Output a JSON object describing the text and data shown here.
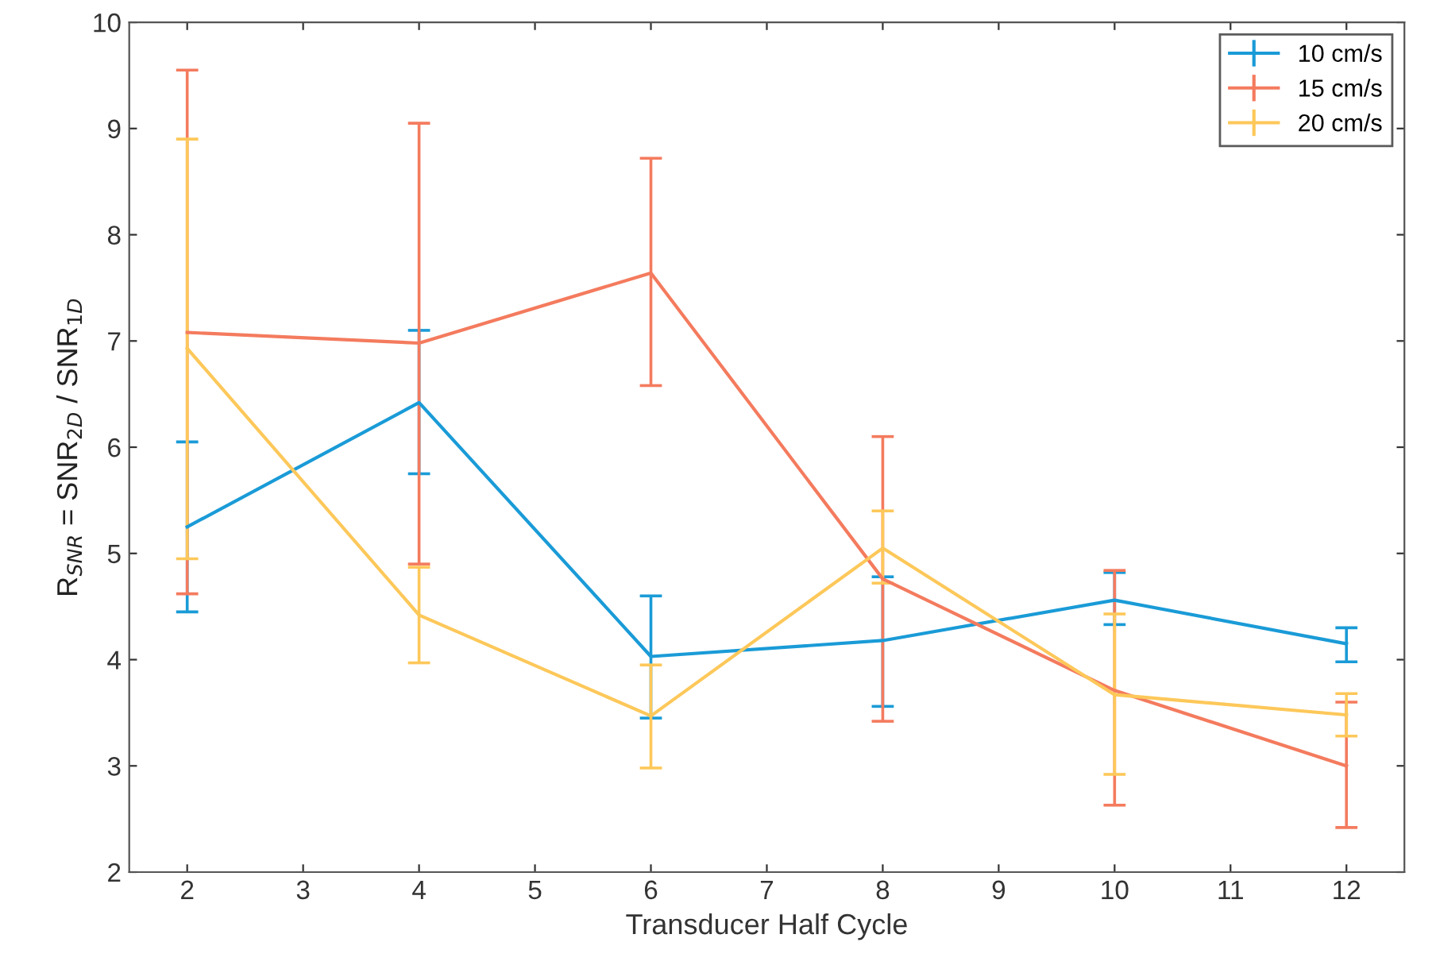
{
  "chart_data": {
    "type": "line",
    "xlabel": "Transducer Half Cycle",
    "ylabel": "R$_{SNR}$ = SNR$_{2D}$ / SNR$_{1D}$",
    "x": [
      2,
      4,
      6,
      8,
      10,
      12
    ],
    "series": [
      {
        "name": "10 cm/s",
        "color": "#1a9bd7",
        "values": [
          5.25,
          6.42,
          4.03,
          4.18,
          4.56,
          4.15
        ],
        "errors": [
          [
            4.45,
            6.05
          ],
          [
            5.75,
            7.1
          ],
          [
            3.45,
            4.6
          ],
          [
            3.56,
            4.78
          ],
          [
            4.33,
            4.82
          ],
          [
            3.98,
            4.3
          ]
        ]
      },
      {
        "name": "15 cm/s",
        "color": "#f47b5e",
        "values": [
          7.08,
          6.98,
          7.64,
          4.76,
          3.71,
          3.0
        ],
        "errors": [
          [
            4.62,
            9.55
          ],
          [
            4.9,
            9.05
          ],
          [
            6.58,
            8.72
          ],
          [
            3.42,
            6.1
          ],
          [
            2.63,
            4.84
          ],
          [
            2.42,
            3.6
          ]
        ]
      },
      {
        "name": "20 cm/s",
        "color": "#fdc85a",
        "values": [
          6.93,
          4.42,
          3.47,
          5.05,
          3.67,
          3.48
        ],
        "errors": [
          [
            4.95,
            8.9
          ],
          [
            3.97,
            4.87
          ],
          [
            2.98,
            3.95
          ],
          [
            4.72,
            5.4
          ],
          [
            2.92,
            4.43
          ],
          [
            3.28,
            3.68
          ]
        ]
      }
    ],
    "xlim": [
      1.5,
      12.5
    ],
    "ylim": [
      2,
      10
    ],
    "xticks": [
      2,
      3,
      4,
      5,
      6,
      7,
      8,
      9,
      10,
      11,
      12
    ],
    "yticks": [
      2,
      3,
      4,
      5,
      6,
      7,
      8,
      9,
      10
    ],
    "grid": false,
    "legend": "top right",
    "marker": "none",
    "line_style": "solid"
  }
}
